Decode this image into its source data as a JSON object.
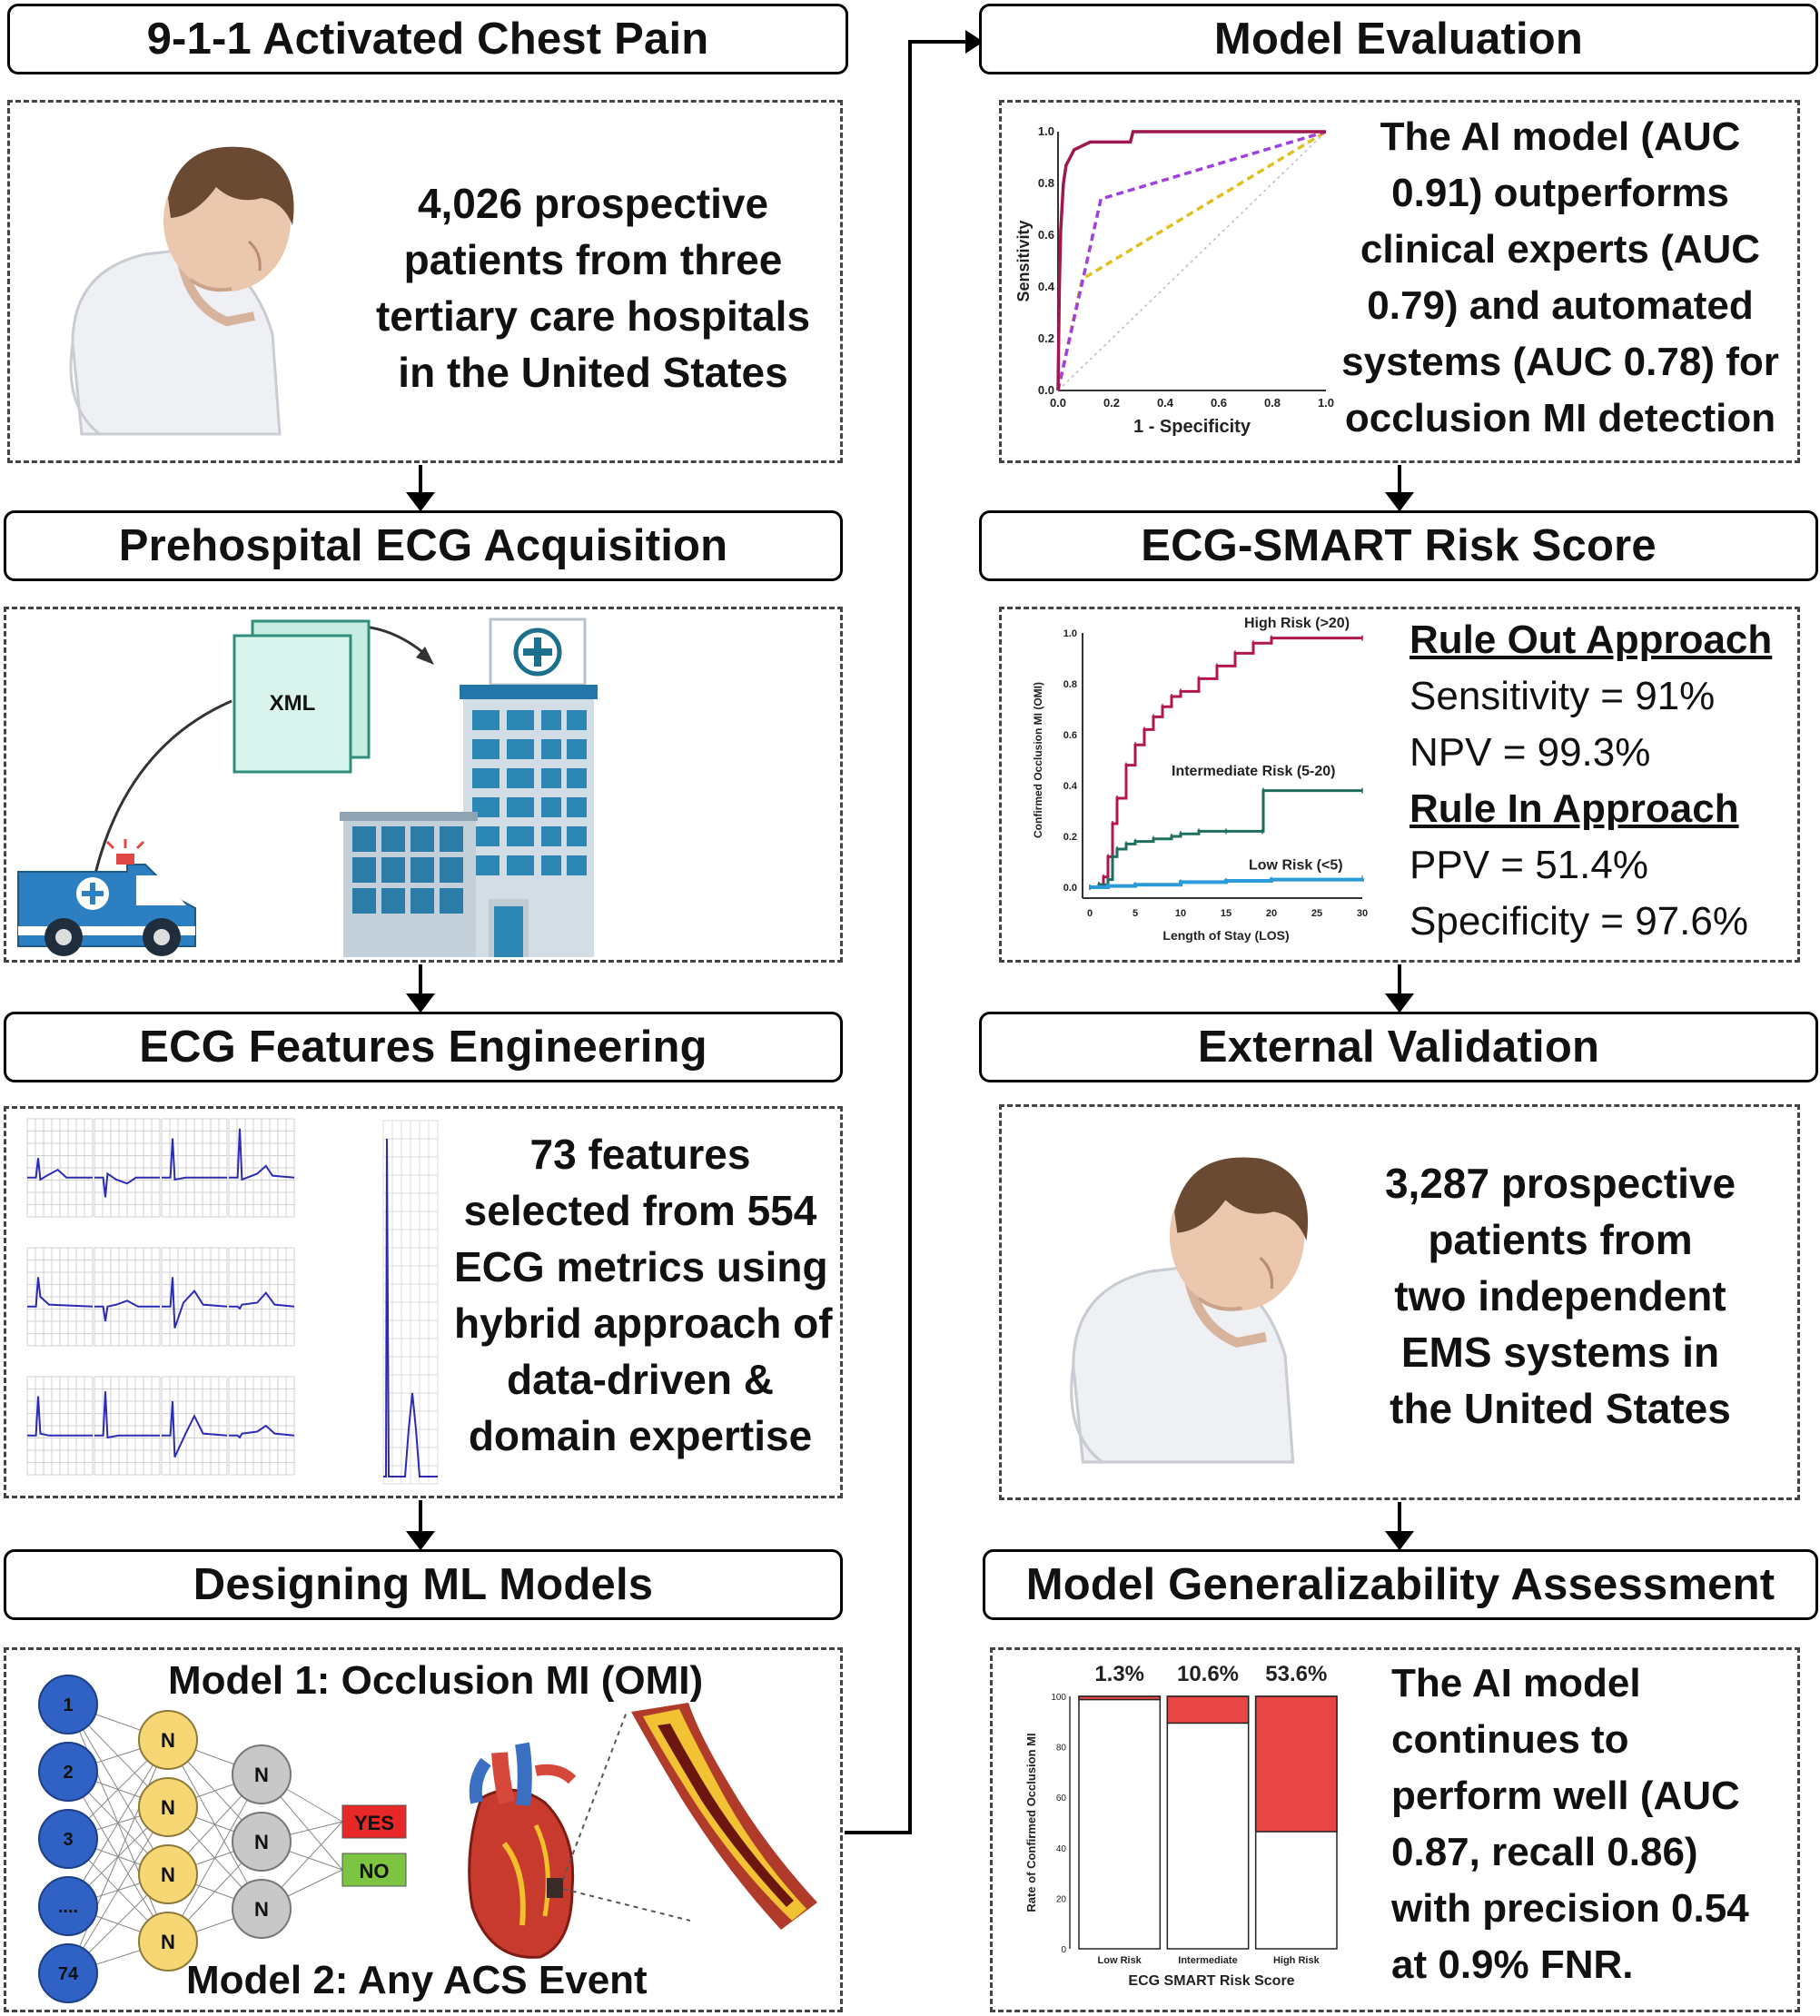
{
  "left": {
    "step1": {
      "header": "9-1-1 Activated Chest Pain",
      "body": [
        "4,026 prospective",
        "patients from three",
        "tertiary care hospitals",
        "in the United States"
      ]
    },
    "step2": {
      "header": "Prehospital ECG Acquisition",
      "xml_label": "XML"
    },
    "step3": {
      "header": "ECG Features Engineering",
      "body": [
        "73 features",
        "selected from 554",
        "ECG metrics using",
        "hybrid approach of",
        "data-driven &",
        "domain expertise"
      ]
    },
    "step4": {
      "header": "Designing ML Models",
      "model1": "Model 1: Occlusion MI (OMI)",
      "model2": "Model 2: Any ACS Event",
      "input_nodes": [
        "1",
        "2",
        "3",
        "....",
        "74"
      ],
      "hidden_label": "N",
      "output_yes": "YES",
      "output_no": "NO"
    }
  },
  "right": {
    "step5": {
      "header": "Model Evaluation",
      "body": [
        "The AI model (AUC",
        "0.91) outperforms",
        "clinical experts (AUC",
        "0.79) and automated",
        "systems (AUC 0.78) for",
        "occlusion MI detection"
      ],
      "chart": {
        "xlabel": "1 - Specificity",
        "ylabel": "Sensitivity"
      }
    },
    "step6": {
      "header": "ECG-SMART Risk Score",
      "rule_out_title": "Rule Out Approach",
      "sensitivity": "Sensitivity = 91%",
      "npv": "NPV = 99.3%",
      "rule_in_title": "Rule In Approach",
      "ppv": "PPV = 51.4%",
      "specificity": "Specificity = 97.6%",
      "chart": {
        "xlabel": "Length of Stay (LOS)",
        "ylabel": "Confirmed Occlusion MI (OMI)",
        "high": "High Risk (>20)",
        "intermediate": "Intermediate Risk (5-20)",
        "low": "Low Risk (<5)"
      }
    },
    "step7": {
      "header": "External Validation",
      "body": [
        "3,287 prospective",
        "patients from",
        "two independent",
        "EMS systems in",
        "the United States"
      ]
    },
    "step8": {
      "header": "Model Generalizability Assessment",
      "body": [
        "The AI model",
        "continues to",
        "perform well (AUC",
        "0.87, recall 0.86)",
        "with precision 0.54",
        "at 0.9% FNR."
      ],
      "chart": {
        "xlabel": "ECG SMART Risk Score",
        "ylabel": "Rate of Confirmed Occlusion MI"
      }
    }
  },
  "colors": {
    "auc_ai": "#a0174f",
    "auc_experts": "#a040e0",
    "auc_auto": "#e0c020",
    "km_high": "#b3164a",
    "km_int": "#1f6e5e",
    "km_low": "#2a9ad8",
    "bar_red": "#e84545",
    "node_blue": "#2f62c4",
    "node_yellow": "#f7d774",
    "node_gray": "#c8c8c8"
  },
  "chart_data": [
    {
      "type": "line",
      "title": "",
      "xlabel": "1 - Specificity",
      "ylabel": "Sensitivity",
      "xlim": [
        0,
        1
      ],
      "ylim": [
        0,
        1
      ],
      "x_ticks": [
        "0.0",
        "0.2",
        "0.4",
        "0.6",
        "0.8",
        "1.0"
      ],
      "y_ticks": [
        "0.0",
        "0.2",
        "0.4",
        "0.6",
        "0.8",
        "1.0"
      ],
      "series": [
        {
          "color": "#a0174f",
          "style": "solid",
          "points": [
            [
              0,
              0
            ],
            [
              0.005,
              0.4
            ],
            [
              0.01,
              0.62
            ],
            [
              0.02,
              0.8
            ],
            [
              0.03,
              0.87
            ],
            [
              0.06,
              0.93
            ],
            [
              0.12,
              0.96
            ],
            [
              0.27,
              0.96
            ],
            [
              0.28,
              1.0
            ],
            [
              1,
              1
            ]
          ]
        },
        {
          "color": "#a040e0",
          "style": "dashed",
          "points": [
            [
              0,
              0
            ],
            [
              0.16,
              0.74
            ],
            [
              1,
              1
            ]
          ]
        },
        {
          "color": "#e0c020",
          "style": "dashed",
          "points": [
            [
              0,
              0
            ],
            [
              0.09,
              0.43
            ],
            [
              1,
              1
            ]
          ]
        },
        {
          "color": "#bbbbbb",
          "style": "dotted",
          "points": [
            [
              0,
              0
            ],
            [
              1,
              1
            ]
          ]
        }
      ]
    },
    {
      "type": "line",
      "title": "",
      "xlabel": "Length of Stay (LOS)",
      "ylabel": "Confirmed Occlusion MI (OMI)",
      "xlim": [
        0,
        30
      ],
      "ylim": [
        0,
        1
      ],
      "x_ticks": [
        "0",
        "5",
        "10",
        "15",
        "20",
        "25",
        "30"
      ],
      "y_ticks": [
        "0.0",
        "0.2",
        "0.4",
        "0.6",
        "0.8",
        "1.0"
      ],
      "series": [
        {
          "name": "High Risk (>20)",
          "color": "#b3164a",
          "points": [
            [
              0,
              0
            ],
            [
              1,
              0.01
            ],
            [
              1.5,
              0.04
            ],
            [
              2,
              0.12
            ],
            [
              2.5,
              0.25
            ],
            [
              3,
              0.35
            ],
            [
              4,
              0.48
            ],
            [
              5,
              0.56
            ],
            [
              6,
              0.62
            ],
            [
              7,
              0.67
            ],
            [
              8,
              0.71
            ],
            [
              9,
              0.75
            ],
            [
              10,
              0.77
            ],
            [
              12,
              0.82
            ],
            [
              14,
              0.87
            ],
            [
              16,
              0.92
            ],
            [
              18,
              0.96
            ],
            [
              20,
              0.98
            ],
            [
              30,
              0.98
            ]
          ]
        },
        {
          "name": "Intermediate Risk (5-20)",
          "color": "#1f6e5e",
          "points": [
            [
              0,
              0
            ],
            [
              1,
              0.01
            ],
            [
              2,
              0.03
            ],
            [
              2.5,
              0.12
            ],
            [
              3,
              0.15
            ],
            [
              4,
              0.17
            ],
            [
              5,
              0.18
            ],
            [
              7,
              0.19
            ],
            [
              9,
              0.2
            ],
            [
              10,
              0.21
            ],
            [
              12,
              0.22
            ],
            [
              15,
              0.22
            ],
            [
              19,
              0.22
            ],
            [
              19.1,
              0.38
            ],
            [
              30,
              0.38
            ]
          ]
        },
        {
          "name": "Low Risk (<5)",
          "color": "#2a9ad8",
          "points": [
            [
              0,
              0
            ],
            [
              2,
              0.005
            ],
            [
              5,
              0.01
            ],
            [
              10,
              0.02
            ],
            [
              15,
              0.025
            ],
            [
              20,
              0.03
            ],
            [
              30,
              0.035
            ]
          ]
        }
      ]
    },
    {
      "type": "bar",
      "title": "",
      "xlabel": "ECG SMART Risk Score",
      "ylabel": "Rate of Confirmed Occlusion MI",
      "categories": [
        "Low Risk",
        "Intermediate",
        "High Risk"
      ],
      "data_labels": [
        "1.3%",
        "10.6%",
        "53.6%"
      ],
      "values": [
        1.3,
        10.6,
        53.6
      ],
      "ylim": [
        0,
        100
      ],
      "y_ticks": [
        "0",
        "20",
        "40",
        "60",
        "80",
        "100"
      ],
      "stacked": true
    }
  ]
}
